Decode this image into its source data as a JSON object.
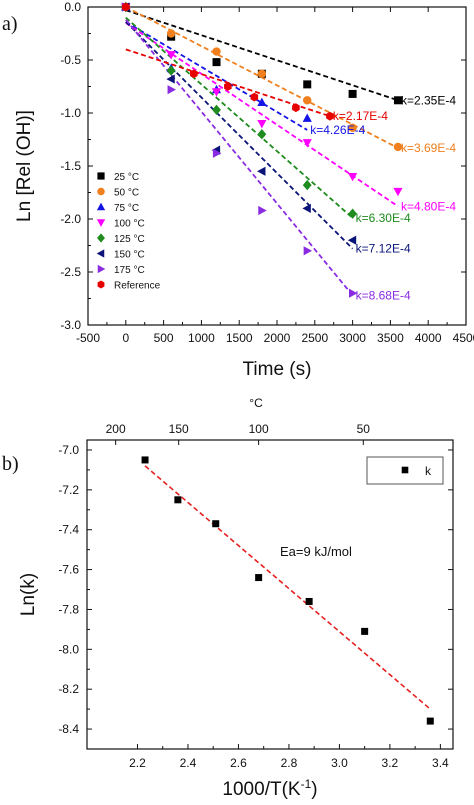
{
  "chart_data": [
    {
      "panel": "a)",
      "type": "scatter",
      "xlabel": "Time (s)",
      "ylabel": "Ln [Rel (OH)]",
      "xlim": [
        -500,
        4500
      ],
      "ylim": [
        -3.0,
        0.0
      ],
      "xticks": [
        -500,
        0,
        500,
        1000,
        1500,
        2000,
        2500,
        3000,
        3500,
        4000,
        4500
      ],
      "yticks": [
        0.0,
        -0.5,
        -1.0,
        -1.5,
        -2.0,
        -2.5,
        -3.0
      ],
      "xtick_labels": [
        "-500",
        "0",
        "500",
        "1000",
        "1500",
        "2000",
        "2500",
        "3000",
        "3500",
        "4000",
        "4500"
      ],
      "ytick_labels": [
        "0.0",
        "-0.5",
        "-1.0",
        "-1.5",
        "-2.0",
        "-2.5",
        "-3.0"
      ],
      "legend_position": "bottom-left",
      "series": [
        {
          "name": "25 °C",
          "color": "#000000",
          "marker": "square",
          "x": [
            0,
            600,
            1200,
            1800,
            2400,
            3000,
            3600
          ],
          "y": [
            0.0,
            -0.28,
            -0.52,
            -0.63,
            -0.73,
            -0.82,
            -0.88
          ],
          "fit": {
            "x": [
              0,
              3600
            ],
            "y": [
              -0.03,
              -0.88
            ]
          },
          "k_label": "k=2.35E-4"
        },
        {
          "name": "50 °C",
          "color": "#f07f1d",
          "marker": "circle",
          "x": [
            0,
            600,
            1200,
            1800,
            2400,
            3000,
            3600
          ],
          "y": [
            0.0,
            -0.25,
            -0.42,
            -0.63,
            -0.88,
            -1.14,
            -1.32
          ],
          "fit": {
            "x": [
              0,
              3600
            ],
            "y": [
              0.0,
              -1.33
            ]
          },
          "k_label": "k=3.69E-4"
        },
        {
          "name": "75 °C",
          "color": "#1414e6",
          "marker": "triangle-up",
          "x": [
            0,
            600,
            1200,
            1800,
            2400
          ],
          "y": [
            0.0,
            -0.58,
            -0.78,
            -0.9,
            -1.05
          ],
          "fit": {
            "x": [
              0,
              2400
            ],
            "y": [
              -0.14,
              -1.16
            ]
          },
          "k_label": "k=4.26E-4"
        },
        {
          "name": "100 °C",
          "color": "#ff00ff",
          "marker": "triangle-down",
          "x": [
            0,
            600,
            1200,
            1800,
            2400,
            3000,
            3600
          ],
          "y": [
            0.0,
            -0.45,
            -0.8,
            -1.1,
            -1.28,
            -1.6,
            -1.74
          ],
          "fit": {
            "x": [
              0,
              3600
            ],
            "y": [
              -0.15,
              -1.88
            ]
          },
          "k_label": "k=4.80E-4"
        },
        {
          "name": "125 °C",
          "color": "#1e8c1e",
          "marker": "diamond",
          "x": [
            0,
            600,
            1200,
            1800,
            2400,
            3000
          ],
          "y": [
            0.0,
            -0.6,
            -0.97,
            -1.2,
            -1.68,
            -1.95
          ],
          "fit": {
            "x": [
              0,
              3000
            ],
            "y": [
              -0.1,
              -1.99
            ]
          },
          "k_label": "k=6.30E-4"
        },
        {
          "name": "150 °C",
          "color": "#0a1478",
          "marker": "triangle-left",
          "x": [
            0,
            600,
            1200,
            1800,
            2400,
            3000
          ],
          "y": [
            0.0,
            -0.68,
            -1.35,
            -1.55,
            -1.9,
            -2.2
          ],
          "fit": {
            "x": [
              0,
              3000
            ],
            "y": [
              -0.14,
              -2.28
            ]
          },
          "k_label": "k=7.12E-4"
        },
        {
          "name": "175 °C",
          "color": "#8a2be2",
          "marker": "triangle-right",
          "x": [
            0,
            600,
            1200,
            1800,
            2400,
            3000
          ],
          "y": [
            0.0,
            -0.78,
            -1.38,
            -1.92,
            -2.3,
            -2.7
          ],
          "fit": {
            "x": [
              0,
              3000
            ],
            "y": [
              -0.12,
              -2.72
            ]
          },
          "k_label": "k=8.68E-4"
        },
        {
          "name": "Reference",
          "color": "#e60000",
          "marker": "hexagon",
          "x": [
            0,
            900,
            1350,
            1700,
            2250,
            2700
          ],
          "y": [
            0.0,
            -0.63,
            -0.75,
            -0.85,
            -0.95,
            -1.03
          ],
          "fit": {
            "x": [
              0,
              2700
            ],
            "y": [
              -0.4,
              -1.03
            ]
          },
          "k_label": "k=2.17E-4"
        }
      ]
    },
    {
      "panel": "b)",
      "type": "scatter",
      "xlabel": "1000/T(K",
      "xlabel_superscript": "-1",
      "xlabel_suffix": ")",
      "ylabel": "Ln(k)",
      "top_axis_label": "°C",
      "xlim": [
        2.0,
        3.45
      ],
      "ylim": [
        -8.5,
        -6.95
      ],
      "xticks": [
        2.2,
        2.4,
        2.6,
        2.8,
        3.0,
        3.2,
        3.4
      ],
      "yticks": [
        -7.0,
        -7.2,
        -7.4,
        -7.6,
        -7.8,
        -8.0,
        -8.2,
        -8.4
      ],
      "xtick_labels": [
        "2.2",
        "2.4",
        "2.6",
        "2.8",
        "3.0",
        "3.2",
        "3.4"
      ],
      "ytick_labels": [
        "-7.0",
        "-7.2",
        "-7.4",
        "-7.6",
        "-7.8",
        "-8.0",
        "-8.2",
        "-8.4"
      ],
      "top_ticks_celsius": [
        200,
        150,
        100,
        50
      ],
      "top_tick_labels": [
        "200",
        "150",
        "100",
        "50"
      ],
      "legend": {
        "name": "k",
        "position": "top-right"
      },
      "annotation": "Ea=9 kJ/mol",
      "series": [
        {
          "name": "k",
          "color": "#000000",
          "marker": "square",
          "x": [
            2.23,
            2.36,
            2.51,
            2.68,
            2.88,
            3.1,
            3.36
          ],
          "y": [
            -7.05,
            -7.25,
            -7.37,
            -7.64,
            -7.76,
            -7.91,
            -8.36
          ],
          "fit": {
            "x": [
              2.23,
              3.36
            ],
            "y": [
              -7.08,
              -8.3
            ]
          },
          "fit_color": "#e62020"
        }
      ]
    }
  ]
}
